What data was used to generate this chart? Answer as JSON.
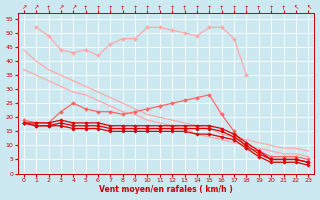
{
  "x": [
    0,
    1,
    2,
    3,
    4,
    5,
    6,
    7,
    8,
    9,
    10,
    11,
    12,
    13,
    14,
    15,
    16,
    17,
    18,
    19,
    20,
    21,
    22,
    23
  ],
  "bg_color": "#cce8f0",
  "grid_color": "#aacccc",
  "series": [
    {
      "name": "diagonal_light1",
      "color": "#ffaaaa",
      "linewidth": 0.9,
      "marker": null,
      "y": [
        44,
        40,
        37,
        35,
        33,
        31,
        29,
        27,
        25,
        23,
        21,
        20,
        19,
        18,
        17,
        16,
        14,
        13,
        12,
        11,
        10,
        9,
        9,
        8
      ]
    },
    {
      "name": "diagonal_light2",
      "color": "#ffaaaa",
      "linewidth": 0.9,
      "marker": null,
      "y": [
        37,
        35,
        33,
        31,
        29,
        28,
        26,
        24,
        22,
        21,
        19,
        18,
        17,
        16,
        14,
        13,
        12,
        11,
        10,
        9,
        8,
        7,
        7,
        6
      ]
    },
    {
      "name": "peaked_light_marker",
      "color": "#ffaaaa",
      "linewidth": 0.9,
      "marker": "D",
      "markersize": 2.0,
      "y": [
        null,
        52,
        49,
        44,
        43,
        44,
        42,
        46,
        48,
        48,
        52,
        52,
        51,
        50,
        49,
        52,
        52,
        48,
        35,
        null,
        null,
        null,
        null,
        null
      ]
    },
    {
      "name": "medium_marker",
      "color": "#ff6666",
      "linewidth": 0.9,
      "marker": "D",
      "markersize": 2.0,
      "y": [
        19,
        18,
        18,
        22,
        25,
        23,
        22,
        22,
        21,
        22,
        23,
        24,
        25,
        26,
        27,
        28,
        21,
        15,
        9,
        8,
        6,
        6,
        6,
        5
      ]
    },
    {
      "name": "bottom_dark1",
      "color": "#dd0000",
      "linewidth": 0.9,
      "marker": "D",
      "markersize": 1.8,
      "y": [
        18,
        18,
        18,
        19,
        18,
        18,
        18,
        17,
        17,
        17,
        17,
        17,
        17,
        17,
        17,
        17,
        16,
        14,
        11,
        8,
        5,
        5,
        5,
        4
      ]
    },
    {
      "name": "bottom_dark2",
      "color": "#dd0000",
      "linewidth": 0.9,
      "marker": "D",
      "markersize": 1.8,
      "y": [
        18,
        17,
        17,
        18,
        17,
        17,
        17,
        16,
        16,
        16,
        16,
        16,
        16,
        16,
        16,
        16,
        15,
        13,
        10,
        7,
        5,
        5,
        5,
        4
      ]
    },
    {
      "name": "bottom_dark3",
      "color": "#dd0000",
      "linewidth": 0.9,
      "marker": "D",
      "markersize": 1.8,
      "y": [
        18,
        17,
        17,
        17,
        16,
        16,
        16,
        15,
        15,
        15,
        15,
        15,
        15,
        15,
        14,
        14,
        13,
        12,
        9,
        6,
        4,
        4,
        4,
        3
      ]
    }
  ],
  "wind_dirs": [
    "↗",
    "↗",
    "↑",
    "↗",
    "↗",
    "↑",
    "↑",
    "↑",
    "↑",
    "↑",
    "↑",
    "↑",
    "↑",
    "↑",
    "↑",
    "↑",
    "↑",
    "↑",
    "↑",
    "↑",
    "↑",
    "↑",
    "↖",
    "↖"
  ],
  "xlabel": "Vent moyen/en rafales ( km/h )",
  "xlim": [
    -0.5,
    23.5
  ],
  "ylim": [
    0,
    57
  ],
  "yticks": [
    0,
    5,
    10,
    15,
    20,
    25,
    30,
    35,
    40,
    45,
    50,
    55
  ],
  "xticks": [
    0,
    1,
    2,
    3,
    4,
    5,
    6,
    7,
    8,
    9,
    10,
    11,
    12,
    13,
    14,
    15,
    16,
    17,
    18,
    19,
    20,
    21,
    22,
    23
  ],
  "axis_color": "#cc0000",
  "label_color": "#cc0000"
}
